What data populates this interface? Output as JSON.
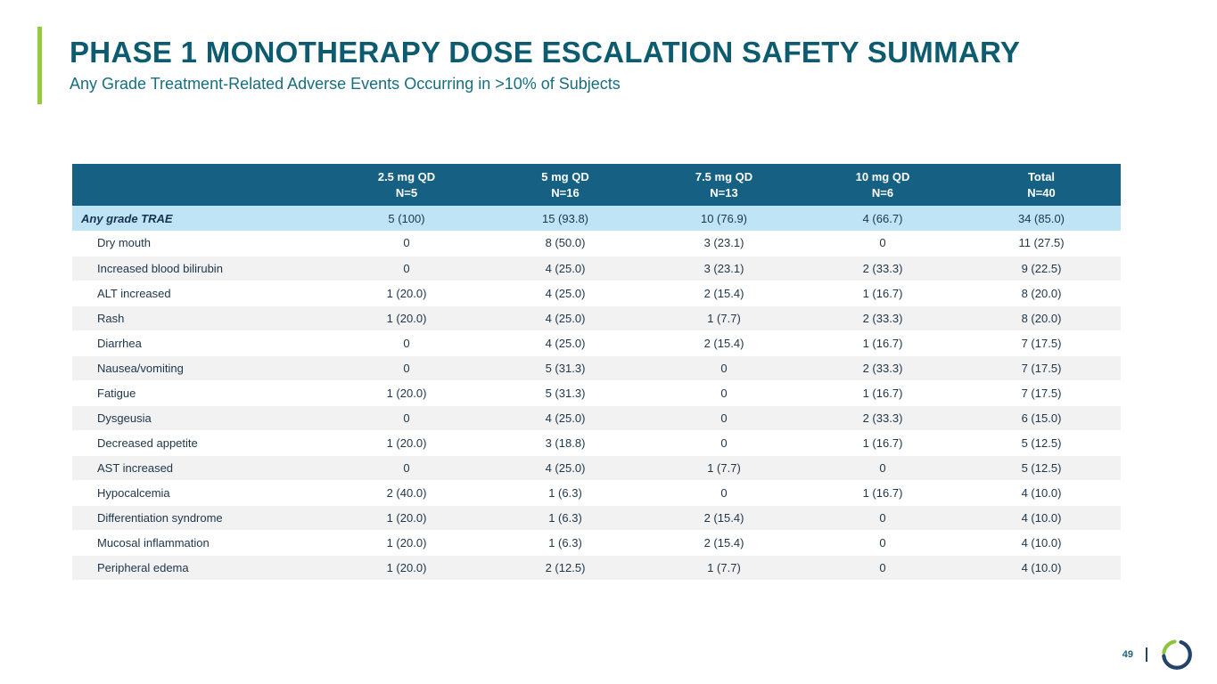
{
  "header": {
    "title": "PHASE 1 MONOTHERAPY DOSE ESCALATION SAFETY SUMMARY",
    "subtitle": "Any Grade Treatment-Related Adverse Events Occurring in >10% of Subjects"
  },
  "colors": {
    "accent_green": "#97c93d",
    "title_teal": "#0d5b6f",
    "subtitle_teal": "#176e80",
    "table_header_bg": "#156083",
    "table_header_text": "#ffffff",
    "highlight_row_bg": "#bee4f6",
    "alt_row_bg": "#f2f2f2",
    "body_text": "#20374b",
    "logo_navy": "#24436a",
    "logo_green": "#8cc63f"
  },
  "table": {
    "columns": [
      {
        "line1": "",
        "line2": ""
      },
      {
        "line1": "2.5 mg QD",
        "line2": "N=5"
      },
      {
        "line1": "5 mg QD",
        "line2": "N=16"
      },
      {
        "line1": "7.5 mg QD",
        "line2": "N=13"
      },
      {
        "line1": "10 mg QD",
        "line2": "N=6"
      },
      {
        "line1": "Total",
        "line2": "N=40"
      }
    ],
    "rows": [
      {
        "label": "Any grade TRAE",
        "highlight": true,
        "values": [
          "5 (100)",
          "15 (93.8)",
          "10 (76.9)",
          "4 (66.7)",
          "34 (85.0)"
        ]
      },
      {
        "label": "Dry mouth",
        "highlight": false,
        "values": [
          "0",
          "8 (50.0)",
          "3 (23.1)",
          "0",
          "11 (27.5)"
        ]
      },
      {
        "label": "Increased blood bilirubin",
        "highlight": false,
        "values": [
          "0",
          "4 (25.0)",
          "3 (23.1)",
          "2 (33.3)",
          "9 (22.5)"
        ]
      },
      {
        "label": "ALT increased",
        "highlight": false,
        "values": [
          "1 (20.0)",
          "4 (25.0)",
          "2 (15.4)",
          "1 (16.7)",
          "8 (20.0)"
        ]
      },
      {
        "label": "Rash",
        "highlight": false,
        "values": [
          "1 (20.0)",
          "4 (25.0)",
          "1 (7.7)",
          "2 (33.3)",
          "8 (20.0)"
        ]
      },
      {
        "label": "Diarrhea",
        "highlight": false,
        "values": [
          "0",
          "4 (25.0)",
          "2 (15.4)",
          "1 (16.7)",
          "7 (17.5)"
        ]
      },
      {
        "label": "Nausea/vomiting",
        "highlight": false,
        "values": [
          "0",
          "5 (31.3)",
          "0",
          "2 (33.3)",
          "7 (17.5)"
        ]
      },
      {
        "label": "Fatigue",
        "highlight": false,
        "values": [
          "1 (20.0)",
          "5 (31.3)",
          "0",
          "1 (16.7)",
          "7 (17.5)"
        ]
      },
      {
        "label": "Dysgeusia",
        "highlight": false,
        "values": [
          "0",
          "4 (25.0)",
          "0",
          "2 (33.3)",
          "6 (15.0)"
        ]
      },
      {
        "label": "Decreased appetite",
        "highlight": false,
        "values": [
          "1 (20.0)",
          "3 (18.8)",
          "0",
          "1 (16.7)",
          "5 (12.5)"
        ]
      },
      {
        "label": "AST increased",
        "highlight": false,
        "values": [
          "0",
          "4 (25.0)",
          "1 (7.7)",
          "0",
          "5 (12.5)"
        ]
      },
      {
        "label": "Hypocalcemia",
        "highlight": false,
        "values": [
          "2 (40.0)",
          "1 (6.3)",
          "0",
          "1 (16.7)",
          "4 (10.0)"
        ]
      },
      {
        "label": "Differentiation syndrome",
        "highlight": false,
        "values": [
          "1 (20.0)",
          "1 (6.3)",
          "2 (15.4)",
          "0",
          "4 (10.0)"
        ]
      },
      {
        "label": "Mucosal inflammation",
        "highlight": false,
        "values": [
          "1 (20.0)",
          "1 (6.3)",
          "2 (15.4)",
          "0",
          "4 (10.0)"
        ]
      },
      {
        "label": "Peripheral edema",
        "highlight": false,
        "values": [
          "1 (20.0)",
          "2 (12.5)",
          "1 (7.7)",
          "0",
          "4 (10.0)"
        ]
      }
    ]
  },
  "footer": {
    "page_number": "49",
    "logo_icon": "ring-logo-icon"
  }
}
